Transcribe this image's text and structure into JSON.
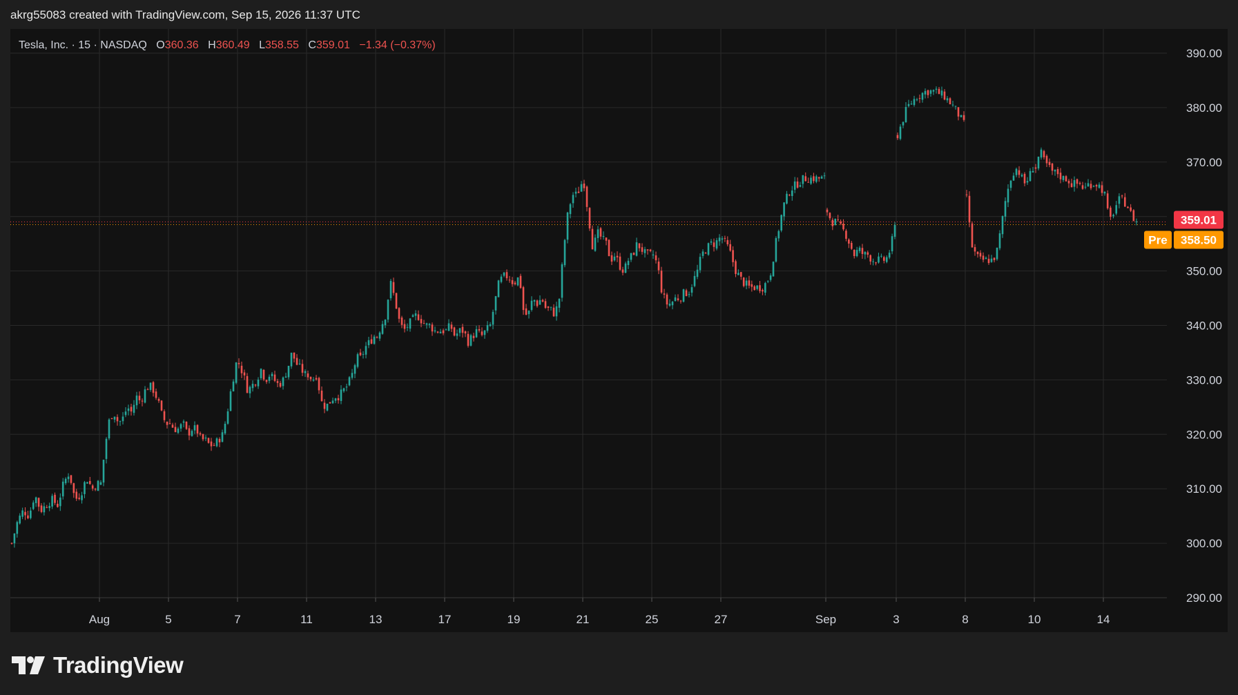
{
  "caption": "akrg55083 created with TradingView.com, Sep 15, 2026 11:37 UTC",
  "brand": "TradingView",
  "colors": {
    "page_bg": "#1e1e1e",
    "chart_bg": "#121212",
    "grid": "#2a2a2a",
    "up": "#26a69a",
    "down": "#ef5350",
    "last_price_label": "#f23645",
    "premarket_label": "#ff9800",
    "text": "#d1d4dc"
  },
  "legend": {
    "symbol": "Tesla, Inc. · 15 · NASDAQ",
    "o_label": "O",
    "o_value": "360.36",
    "h_label": "H",
    "h_value": "360.49",
    "l_label": "L",
    "l_value": "358.55",
    "c_label": "C",
    "c_value": "359.01",
    "change": "−1.34 (−0.37%)"
  },
  "price_labels": {
    "last": "359.01",
    "pre_tag": "Pre",
    "pre": "358.50"
  },
  "chart_data": {
    "type": "candlestick",
    "title": "Tesla, Inc. · 15 · NASDAQ",
    "ylim": [
      287,
      394
    ],
    "y_ticks": [
      "390.00",
      "380.00",
      "370.00",
      "360.00",
      "350.00",
      "340.00",
      "330.00",
      "320.00",
      "310.00",
      "300.00",
      "290.00"
    ],
    "x_ticks": [
      "Aug",
      "5",
      "7",
      "11",
      "13",
      "17",
      "19",
      "21",
      "25",
      "27",
      "Sep",
      "3",
      "8",
      "10",
      "14"
    ],
    "last_price": 359.01,
    "premarket_price": 358.5,
    "grid": true,
    "series": [
      {
        "values": [
          300,
          304,
          306,
          305,
          309,
          306,
          307,
          308,
          307,
          311,
          313,
          308,
          309,
          312,
          310,
          311
        ]
      },
      {
        "values": [
          311,
          318,
          323,
          324,
          322,
          323,
          325,
          324,
          327,
          326,
          328,
          329,
          328,
          326,
          323,
          322
        ]
      },
      {
        "values": [
          322,
          321,
          321,
          322,
          320,
          321,
          321,
          319,
          319,
          318,
          318,
          319,
          320,
          324,
          329,
          333
        ]
      },
      {
        "values": [
          333,
          331,
          328,
          329,
          330,
          332,
          330,
          331,
          330,
          329,
          330,
          332,
          335,
          333,
          332,
          331
        ]
      },
      {
        "values": [
          331,
          330,
          331,
          326,
          325,
          326,
          327,
          327,
          328,
          329,
          331,
          334,
          334,
          336,
          337,
          338
        ]
      },
      {
        "values": [
          338,
          340,
          342,
          348,
          345,
          341,
          339,
          340,
          341,
          342,
          341,
          340,
          340,
          339,
          339,
          339
        ]
      },
      {
        "values": [
          339,
          340,
          338,
          339,
          339,
          337,
          338,
          339,
          338,
          339,
          340,
          344,
          348,
          349,
          349,
          348
        ]
      },
      {
        "values": [
          348,
          349,
          342,
          342,
          345,
          344,
          345,
          343,
          343,
          342,
          345,
          354,
          361,
          364,
          364,
          366
        ]
      },
      {
        "values": [
          366,
          360,
          354,
          357,
          356,
          355,
          352,
          353,
          351,
          350,
          352,
          353,
          355,
          354,
          353,
          353
        ]
      },
      {
        "values": [
          353,
          351,
          346,
          344,
          344,
          345,
          345,
          346,
          346,
          348,
          350,
          353,
          354,
          355,
          355,
          356
        ]
      },
      {
        "values": [
          356,
          354,
          350,
          348,
          347,
          347,
          347,
          349,
          356,
          362,
          365,
          366,
          367,
          367,
          367,
          367
        ]
      },
      {
        "values": [
          361,
          359,
          359,
          358,
          357,
          355,
          353,
          354,
          353,
          353,
          352,
          352,
          352,
          352,
          354,
          358
        ]
      },
      {
        "values": [
          375,
          380,
          382,
          383,
          383,
          382,
          380,
          377
        ]
      },
      {
        "values": [
          364,
          355,
          353,
          352,
          352,
          352,
          352,
          354,
          359,
          364,
          367,
          369,
          368,
          366,
          367,
          369
        ]
      },
      {
        "values": [
          369,
          372,
          370,
          369,
          368,
          368,
          367,
          367,
          366,
          366,
          366,
          365,
          366,
          366,
          366,
          365
        ]
      },
      {
        "values": [
          364,
          359,
          361,
          363,
          363,
          362,
          360,
          359
        ]
      }
    ]
  }
}
